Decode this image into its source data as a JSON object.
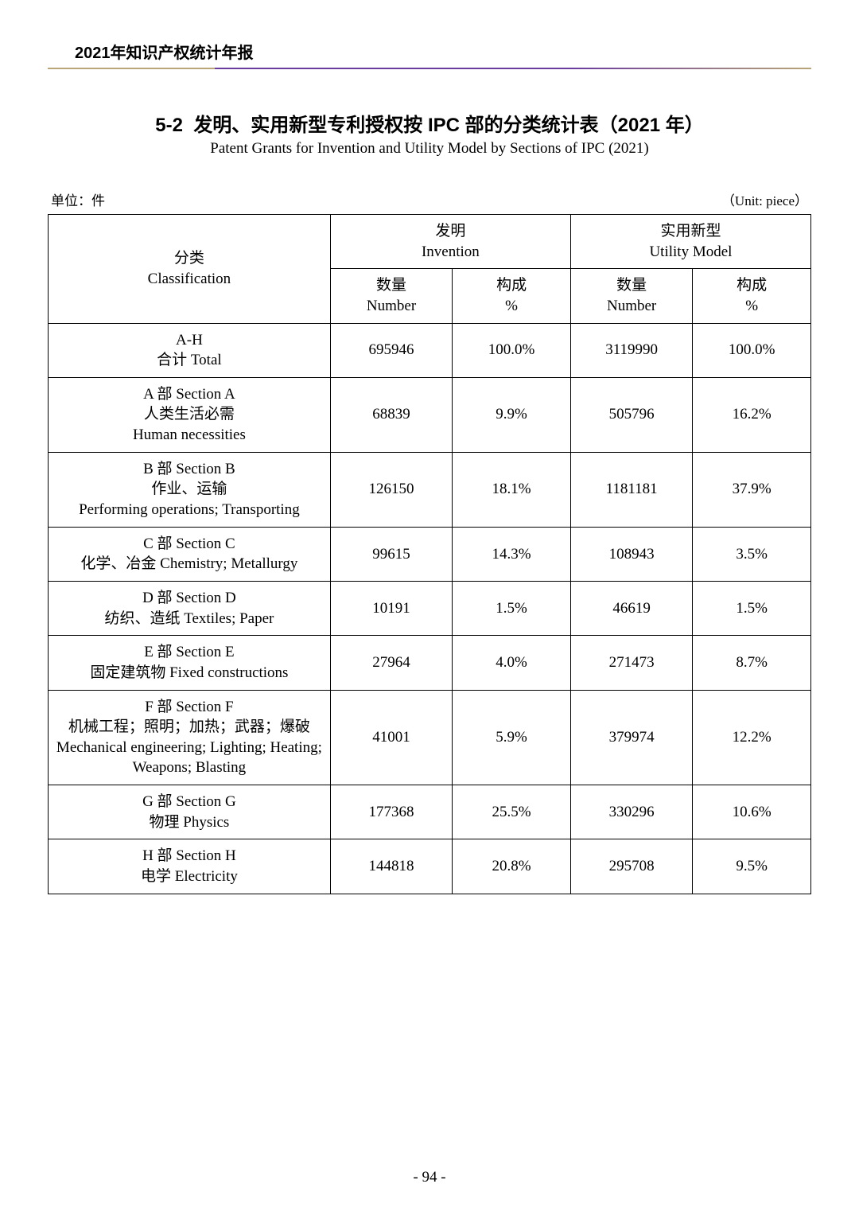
{
  "header": {
    "title": "2021年知识产权统计年报"
  },
  "titles": {
    "section_no": "5-2",
    "title_cn": "发明、实用新型专利授权按 IPC 部的分类统计表（2021 年）",
    "title_en": "Patent Grants for Invention and Utility Model by Sections of IPC (2021)"
  },
  "unit": {
    "left": "单位：件",
    "right": "（Unit: piece）"
  },
  "columns": {
    "classification_cn": "分类",
    "classification_en": "Classification",
    "invention_cn": "发明",
    "invention_en": "Invention",
    "utility_cn": "实用新型",
    "utility_en": "Utility Model",
    "number_cn": "数量",
    "number_en": "Number",
    "percent_cn": "构成",
    "percent_en": "%"
  },
  "rows": [
    {
      "class_lines": [
        "A-H",
        "合计 Total"
      ],
      "inv_num": "695946",
      "inv_pct": "100.0%",
      "um_num": "3119990",
      "um_pct": "100.0%"
    },
    {
      "class_lines": [
        "A 部  Section A",
        "人类生活必需",
        "Human necessities"
      ],
      "inv_num": "68839",
      "inv_pct": "9.9%",
      "um_num": "505796",
      "um_pct": "16.2%"
    },
    {
      "class_lines": [
        "B 部  Section B",
        "作业、运输",
        "Performing operations; Transporting"
      ],
      "inv_num": "126150",
      "inv_pct": "18.1%",
      "um_num": "1181181",
      "um_pct": "37.9%"
    },
    {
      "class_lines": [
        "C 部  Section C",
        "化学、冶金  Chemistry; Metallurgy"
      ],
      "inv_num": "99615",
      "inv_pct": "14.3%",
      "um_num": "108943",
      "um_pct": "3.5%"
    },
    {
      "class_lines": [
        "D 部  Section D",
        "纺织、造纸  Textiles; Paper"
      ],
      "inv_num": "10191",
      "inv_pct": "1.5%",
      "um_num": "46619",
      "um_pct": "1.5%"
    },
    {
      "class_lines": [
        "E 部  Section E",
        "固定建筑物   Fixed constructions"
      ],
      "inv_num": "27964",
      "inv_pct": "4.0%",
      "um_num": "271473",
      "um_pct": "8.7%"
    },
    {
      "class_lines": [
        "F 部  Section F",
        "机械工程；照明；加热；武器；爆破",
        "Mechanical engineering; Lighting; Heating;",
        "Weapons; Blasting"
      ],
      "inv_num": "41001",
      "inv_pct": "5.9%",
      "um_num": "379974",
      "um_pct": "12.2%"
    },
    {
      "class_lines": [
        "G 部   Section G",
        "物理  Physics"
      ],
      "inv_num": "177368",
      "inv_pct": "25.5%",
      "um_num": "330296",
      "um_pct": "10.6%"
    },
    {
      "class_lines": [
        "H 部  Section H",
        "电学  Electricity"
      ],
      "inv_num": "144818",
      "inv_pct": "20.8%",
      "um_num": "295708",
      "um_pct": "9.5%"
    }
  ],
  "page_number": "- 94 -"
}
